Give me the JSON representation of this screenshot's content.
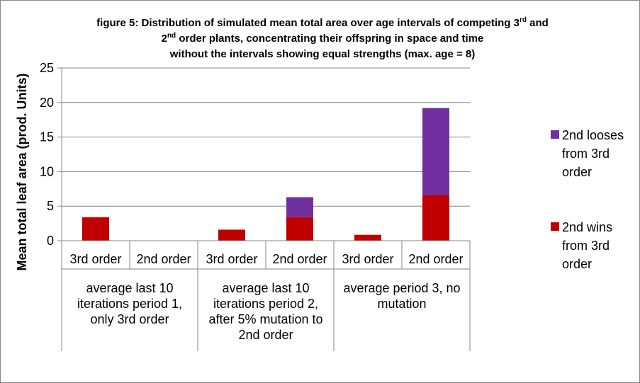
{
  "chart_data": {
    "type": "bar",
    "stacked": true,
    "title": {
      "line1_main": "figure 5: Distribution of simulated mean total area over age intervals of competing 3",
      "line1_sup": "rd",
      "line1_tail": " and",
      "line2_main": "2",
      "line2_sup": "nd",
      "line2_tail": " order plants, concentrating their offspring in space and time",
      "line3": "without the  intervals showing equal strengths (max. age = 8)"
    },
    "ylabel": "Mean total leaf area (prod. Units)",
    "ylim": [
      0,
      25
    ],
    "yticks": [
      "0",
      "5",
      "10",
      "15",
      "20",
      "25"
    ],
    "grid": true,
    "legend_position": "right",
    "categories": [
      "3rd order",
      "2nd order",
      "3rd order",
      "2nd order",
      "3rd order",
      "2nd order"
    ],
    "groups": [
      {
        "label_lines": [
          "average last 10",
          "iterations period 1,",
          "only 3rd order"
        ],
        "span": [
          0,
          1
        ]
      },
      {
        "label_lines": [
          "average last 10",
          "iterations period  2,",
          "after 5% mutation to",
          "2nd order"
        ],
        "span": [
          2,
          3
        ]
      },
      {
        "label_lines": [
          "average period 3, no",
          "mutation"
        ],
        "span": [
          4,
          5
        ]
      }
    ],
    "series": [
      {
        "name": "2nd wins from 3rd order",
        "legend_lines": [
          "2nd wins",
          "from 3rd",
          "order"
        ],
        "color": "#C00000",
        "values": [
          3.4,
          0,
          1.6,
          3.4,
          0.85,
          6.6
        ]
      },
      {
        "name": "2nd looses from 3rd order",
        "legend_lines": [
          "2nd looses",
          "from 3rd",
          "order"
        ],
        "color": "#7030A0",
        "values": [
          0,
          0,
          0,
          2.9,
          0,
          12.6
        ]
      }
    ]
  }
}
